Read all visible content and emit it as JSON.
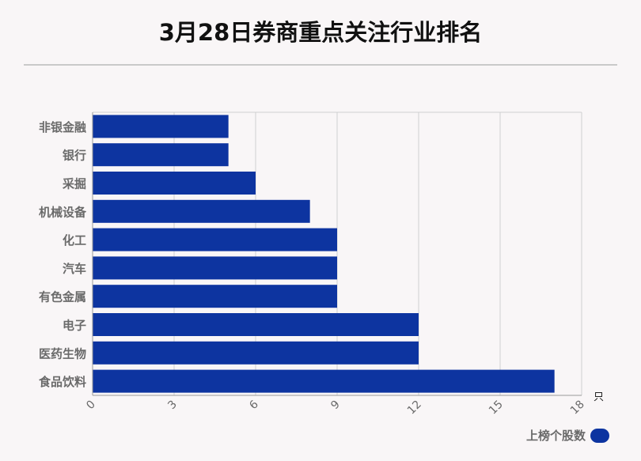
{
  "title": "3月28日券商重点关注行业排名",
  "colors": {
    "bar": "#0d34a0",
    "grid": "#d0d0d0",
    "axis": "#999999",
    "label": "#6a6a6a"
  },
  "chart_data": {
    "type": "bar",
    "orientation": "horizontal",
    "categories": [
      "非银金融",
      "银行",
      "采掘",
      "机械设备",
      "化工",
      "汽车",
      "有色金属",
      "电子",
      "医药生物",
      "食品饮料"
    ],
    "series": [
      {
        "name": "上榜个股数",
        "values": [
          5,
          5,
          6,
          8,
          9,
          9,
          9,
          12,
          12,
          17
        ]
      }
    ],
    "x_ticks": [
      "0",
      "3",
      "6",
      "9",
      "12",
      "15",
      "18"
    ],
    "x_unit": "只",
    "xlim": [
      0,
      18
    ],
    "grid": true,
    "legend_position": "bottom-right"
  }
}
